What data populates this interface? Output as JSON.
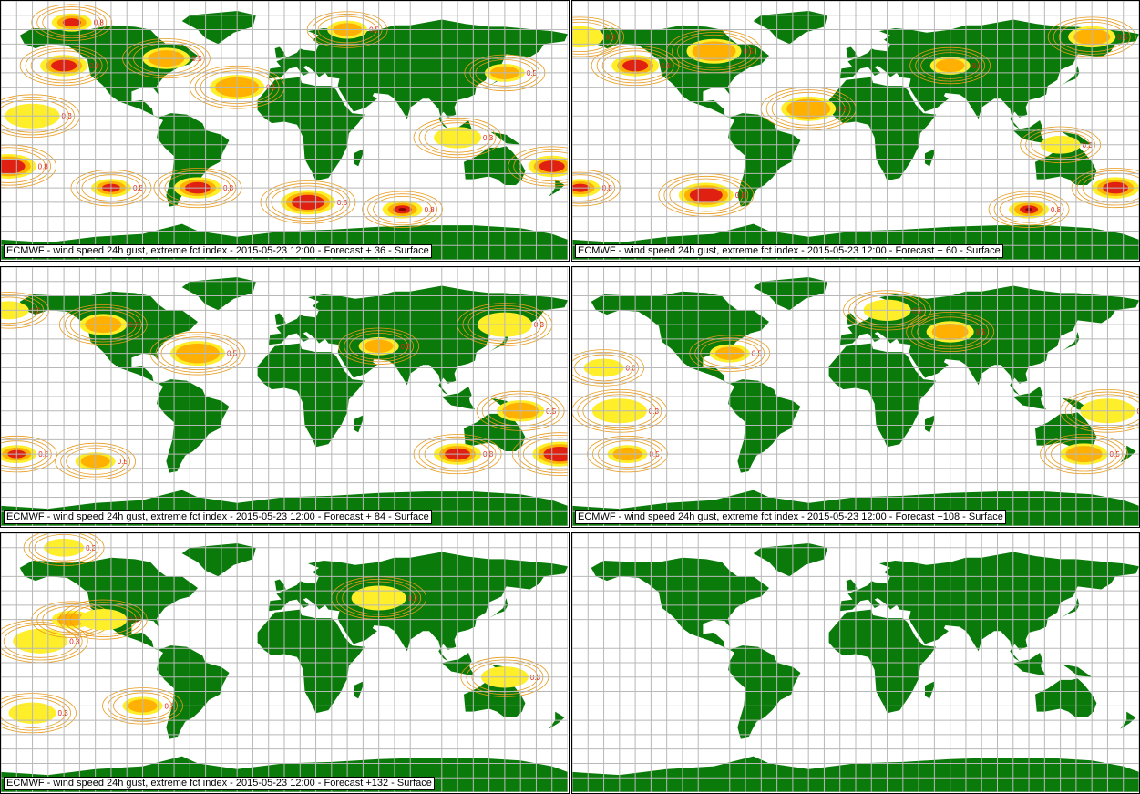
{
  "colors": {
    "land": "#0a7a0a",
    "grid": "#b8b8b8",
    "contour": "#e89a1a",
    "level_low": "#ffee2a",
    "level_mid": "#ffb000",
    "level_high": "#e02010",
    "level_extreme": "#8a0000"
  },
  "contour_labels": [
    "0.3",
    "0.5",
    "0.8"
  ],
  "panels": [
    {
      "caption": "ECMWF - wind speed 24h gust, extreme fct index - 2015-05-23 12:00 - Forecast + 36 - Surface",
      "forecast_hour": 36,
      "gust_areas": [
        {
          "lon": -135,
          "lat": 75,
          "level": "high"
        },
        {
          "lon": -140,
          "lat": 45,
          "level": "high"
        },
        {
          "lon": -175,
          "lat": -25,
          "level": "high"
        },
        {
          "lon": -110,
          "lat": -40,
          "level": "high"
        },
        {
          "lon": -55,
          "lat": -40,
          "level": "high"
        },
        {
          "lon": 15,
          "lat": -50,
          "level": "high"
        },
        {
          "lon": 75,
          "lat": -55,
          "level": "extreme"
        },
        {
          "lon": 170,
          "lat": -25,
          "level": "high"
        },
        {
          "lon": -30,
          "lat": 30,
          "level": "mid"
        },
        {
          "lon": 140,
          "lat": 40,
          "level": "mid"
        },
        {
          "lon": 110,
          "lat": -5,
          "level": "low"
        },
        {
          "lon": -160,
          "lat": 10,
          "level": "low"
        },
        {
          "lon": 40,
          "lat": 70,
          "level": "mid"
        },
        {
          "lon": -75,
          "lat": 50,
          "level": "mid"
        }
      ]
    },
    {
      "caption": "ECMWF - wind speed 24h gust, extreme fct index - 2015-05-23 12:00 - Forecast + 60 - Surface",
      "forecast_hour": 60,
      "gust_areas": [
        {
          "lon": -175,
          "lat": -40,
          "level": "high"
        },
        {
          "lon": -140,
          "lat": 45,
          "level": "high"
        },
        {
          "lon": -95,
          "lat": -45,
          "level": "high"
        },
        {
          "lon": 110,
          "lat": -55,
          "level": "extreme"
        },
        {
          "lon": 165,
          "lat": -40,
          "level": "high"
        },
        {
          "lon": -30,
          "lat": 15,
          "level": "mid"
        },
        {
          "lon": 60,
          "lat": 45,
          "level": "mid"
        },
        {
          "lon": 150,
          "lat": 65,
          "level": "mid"
        },
        {
          "lon": -90,
          "lat": 55,
          "level": "mid"
        },
        {
          "lon": 130,
          "lat": -10,
          "level": "low"
        },
        {
          "lon": -175,
          "lat": 65,
          "level": "low"
        }
      ]
    },
    {
      "caption": "ECMWF - wind speed 24h gust, extreme fct index - 2015-05-23 12:00 - Forecast + 84 - Surface",
      "forecast_hour": 84,
      "gust_areas": [
        {
          "lon": -170,
          "lat": -40,
          "level": "high"
        },
        {
          "lon": 110,
          "lat": -40,
          "level": "high"
        },
        {
          "lon": 175,
          "lat": -40,
          "level": "high"
        },
        {
          "lon": -120,
          "lat": -45,
          "level": "mid"
        },
        {
          "lon": -115,
          "lat": 50,
          "level": "mid"
        },
        {
          "lon": -55,
          "lat": 30,
          "level": "mid"
        },
        {
          "lon": 60,
          "lat": 35,
          "level": "mid"
        },
        {
          "lon": 150,
          "lat": -10,
          "level": "mid"
        },
        {
          "lon": 140,
          "lat": 50,
          "level": "low"
        },
        {
          "lon": -175,
          "lat": 60,
          "level": "low"
        }
      ]
    },
    {
      "caption": "ECMWF - wind speed 24h gust, extreme fct index - 2015-05-23 12:00 - Forecast +108 - Surface",
      "forecast_hour": 108,
      "gust_areas": [
        {
          "lon": -145,
          "lat": -40,
          "level": "mid"
        },
        {
          "lon": 145,
          "lat": -40,
          "level": "mid"
        },
        {
          "lon": -150,
          "lat": -10,
          "level": "low"
        },
        {
          "lon": -80,
          "lat": 30,
          "level": "mid"
        },
        {
          "lon": 60,
          "lat": 45,
          "level": "mid"
        },
        {
          "lon": 160,
          "lat": -10,
          "level": "low"
        },
        {
          "lon": -160,
          "lat": 20,
          "level": "low"
        },
        {
          "lon": 20,
          "lat": 60,
          "level": "low"
        }
      ]
    },
    {
      "caption": "ECMWF - wind speed 24h gust, extreme fct index - 2015-05-23 12:00 - Forecast +132 - Surface",
      "forecast_hour": 132,
      "gust_areas": [
        {
          "lon": -90,
          "lat": -30,
          "level": "mid"
        },
        {
          "lon": -160,
          "lat": -35,
          "level": "low"
        },
        {
          "lon": -155,
          "lat": 15,
          "level": "low"
        },
        {
          "lon": -135,
          "lat": 30,
          "level": "mid"
        },
        {
          "lon": -115,
          "lat": 30,
          "level": "low"
        },
        {
          "lon": 60,
          "lat": 45,
          "level": "low"
        },
        {
          "lon": -140,
          "lat": 80,
          "level": "low"
        },
        {
          "lon": 140,
          "lat": -10,
          "level": "low"
        }
      ]
    },
    {
      "caption": "",
      "forecast_hour": null,
      "gust_areas": []
    }
  ]
}
